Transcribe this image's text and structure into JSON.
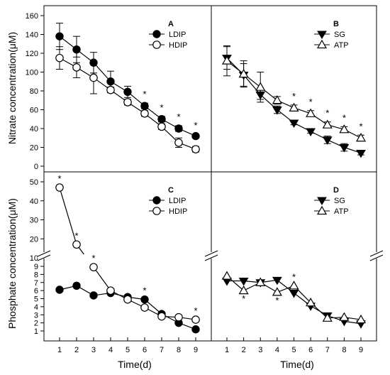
{
  "figure": {
    "ylabel_top": "Nitrate concentration(μM)",
    "ylabel_bottom": "Phosphate concentration(μM)",
    "xlabel": "Time(d)"
  },
  "chart_data": [
    {
      "id": "A",
      "type": "line",
      "panel_label": "A",
      "x": [
        1,
        2,
        3,
        4,
        5,
        6,
        7,
        8,
        9
      ],
      "ylim": [
        0,
        160
      ],
      "yticks": [
        0,
        20,
        40,
        60,
        80,
        100,
        120,
        140,
        160
      ],
      "legend_position": "top-right",
      "series": [
        {
          "name": "LDIP",
          "marker": "filled-circle",
          "color": "#000000",
          "values": [
            138,
            124,
            110,
            90,
            79,
            64,
            50,
            40,
            32
          ],
          "errors": [
            14,
            14,
            11,
            11,
            6,
            3,
            3,
            3,
            2
          ]
        },
        {
          "name": "HDIP",
          "marker": "open-circle",
          "color": "#000000",
          "values": [
            115,
            105,
            94,
            81,
            68,
            56,
            42,
            25,
            18
          ],
          "errors": [
            12,
            11,
            17,
            3,
            3,
            3,
            3,
            5,
            3
          ]
        }
      ],
      "significance_x": [
        6,
        7,
        8,
        9
      ],
      "significance_label": "*"
    },
    {
      "id": "B",
      "type": "line",
      "panel_label": "B",
      "x": [
        1,
        2,
        3,
        4,
        5,
        6,
        7,
        8,
        9
      ],
      "ylim": [
        0,
        160
      ],
      "legend_position": "top-right",
      "series": [
        {
          "name": "SG",
          "marker": "filled-triangle-down",
          "color": "#000000",
          "values": [
            115,
            97,
            76,
            60,
            46,
            37,
            28,
            20,
            14
          ],
          "errors": [
            12,
            12,
            5,
            4,
            2,
            2,
            4,
            4,
            2
          ]
        },
        {
          "name": "ATP",
          "marker": "open-triangle-up",
          "color": "#000000",
          "values": [
            112,
            98,
            84,
            70,
            62,
            56,
            44,
            39,
            30
          ],
          "errors": [
            16,
            14,
            16,
            4,
            3,
            3,
            3,
            3,
            3
          ]
        }
      ],
      "significance_x": [
        5,
        6,
        7,
        8,
        9
      ],
      "significance_label": "*"
    },
    {
      "id": "C",
      "type": "line",
      "panel_label": "C",
      "x": [
        1,
        2,
        3,
        4,
        5,
        6,
        7,
        8,
        9
      ],
      "axis_break": true,
      "yticks_upper": [
        10,
        20,
        30,
        40,
        50
      ],
      "yticks_lower": [
        1,
        2,
        3,
        4,
        5,
        6,
        7,
        8,
        9
      ],
      "legend_position": "top-right",
      "series": [
        {
          "name": "LDIP",
          "marker": "filled-circle",
          "color": "#000000",
          "values": [
            6.1,
            6.6,
            5.4,
            5.7,
            5.2,
            4.9,
            3.1,
            2.0,
            1.2
          ]
        },
        {
          "name": "HDIP",
          "marker": "open-circle",
          "color": "#000000",
          "values": [
            47,
            17,
            8.9,
            6.0,
            4.9,
            3.9,
            2.8,
            2.7,
            2.4
          ]
        }
      ],
      "significance_x": [
        1,
        2,
        3,
        6,
        9
      ],
      "significance_label": "*"
    },
    {
      "id": "D",
      "type": "line",
      "panel_label": "D",
      "x": [
        1,
        2,
        3,
        4,
        5,
        6,
        7,
        8,
        9
      ],
      "axis_break": true,
      "legend_position": "top-right",
      "series": [
        {
          "name": "SG",
          "marker": "filled-triangle-down",
          "color": "#000000",
          "values": [
            7.2,
            7.2,
            7.0,
            7.3,
            5.7,
            4.1,
            2.9,
            2.2,
            1.9
          ]
        },
        {
          "name": "ATP",
          "marker": "open-triangle-up",
          "color": "#000000",
          "values": [
            7.8,
            6.0,
            7.0,
            5.8,
            6.6,
            4.5,
            2.6,
            2.7,
            2.4
          ]
        }
      ],
      "significance_x": [
        2,
        4,
        5
      ],
      "significance_label": "*"
    }
  ]
}
